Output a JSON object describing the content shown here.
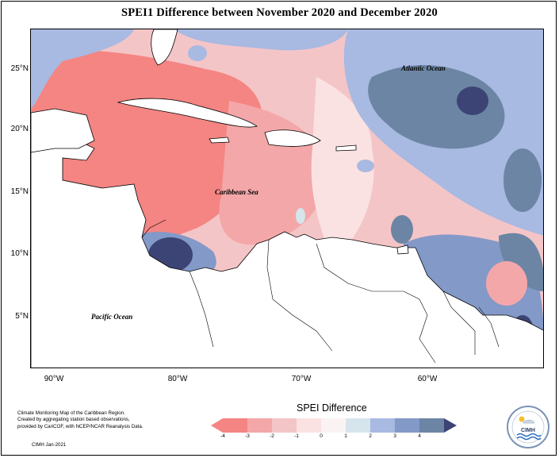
{
  "title": "SPEI1 Difference between November 2020 and December 2020",
  "map": {
    "lat_labels": [
      "25°N",
      "20°N",
      "15°N",
      "10°N",
      "5°N"
    ],
    "lon_labels": [
      "90°W",
      "80°W",
      "70°W",
      "60°W"
    ],
    "places": {
      "atlantic": "Atlantic Ocean",
      "caribbean": "Caribbean Sea",
      "pacific": "Pacific Ocean"
    },
    "colors": {
      "m4": "#f48583",
      "m3": "#f4a7a8",
      "m2": "#f4c5c7",
      "m1": "#fbe2e2",
      "p0": "#d6e4ec",
      "p1": "#a8b9e2",
      "p2": "#8399c8",
      "p3": "#6c85a4",
      "p4": "#3b4474"
    }
  },
  "legend": {
    "title": "SPEI Difference",
    "ticks": [
      "-4",
      "-3",
      "-2",
      "-1",
      "0",
      "1",
      "2",
      "3",
      "4"
    ],
    "colors": [
      "#f48583",
      "#f4a7a8",
      "#f4c5c7",
      "#fbe2e2",
      "#fbf3f3",
      "#d6e4ec",
      "#a8b9e2",
      "#8399c8",
      "#6c85a4",
      "#3b4474"
    ]
  },
  "credits": {
    "line1": "Climate Monitoring Map of the Caribbean Region.",
    "line2": "Created by aggregating station based observations,",
    "line3": "provided by CariCOF, with NCEP/NCAR Reanalysis Data.",
    "line4": "CIMH Jan-2021"
  },
  "logo": {
    "text": "CIMH"
  }
}
